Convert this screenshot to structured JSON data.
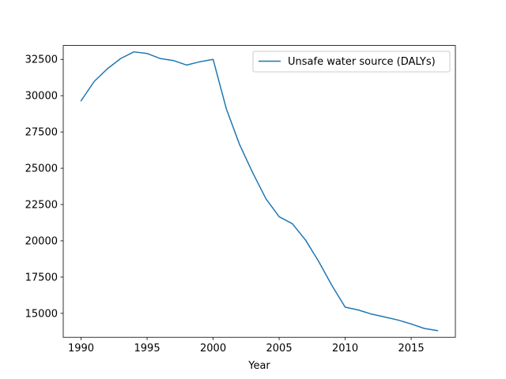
{
  "chart_data": {
    "type": "line",
    "title": "",
    "xlabel": "Year",
    "ylabel": "",
    "xlim": [
      1988.65,
      2018.35
    ],
    "ylim": [
      13350,
      33460
    ],
    "xticks": [
      1990,
      1995,
      2000,
      2005,
      2010,
      2015
    ],
    "yticks": [
      15000,
      17500,
      20000,
      22500,
      25000,
      27500,
      30000,
      32500
    ],
    "grid": false,
    "legend_position": "top-right",
    "colors": {
      "series": "#1f77b4"
    },
    "x": [
      1990,
      1991,
      1992,
      1993,
      1994,
      1995,
      1996,
      1997,
      1998,
      1999,
      2000,
      2001,
      2002,
      2003,
      2004,
      2005,
      2006,
      2007,
      2008,
      2009,
      2010,
      2011,
      2012,
      2013,
      2014,
      2015,
      2016,
      2017
    ],
    "series": [
      {
        "name": "Unsafe water source (DALYs)",
        "values": [
          29650,
          30990,
          31860,
          32560,
          33020,
          32910,
          32560,
          32420,
          32110,
          32340,
          32500,
          29100,
          26640,
          24690,
          22900,
          21660,
          21180,
          20050,
          18570,
          16920,
          15430,
          15230,
          14950,
          14750,
          14540,
          14270,
          13960,
          13810
        ]
      }
    ]
  }
}
